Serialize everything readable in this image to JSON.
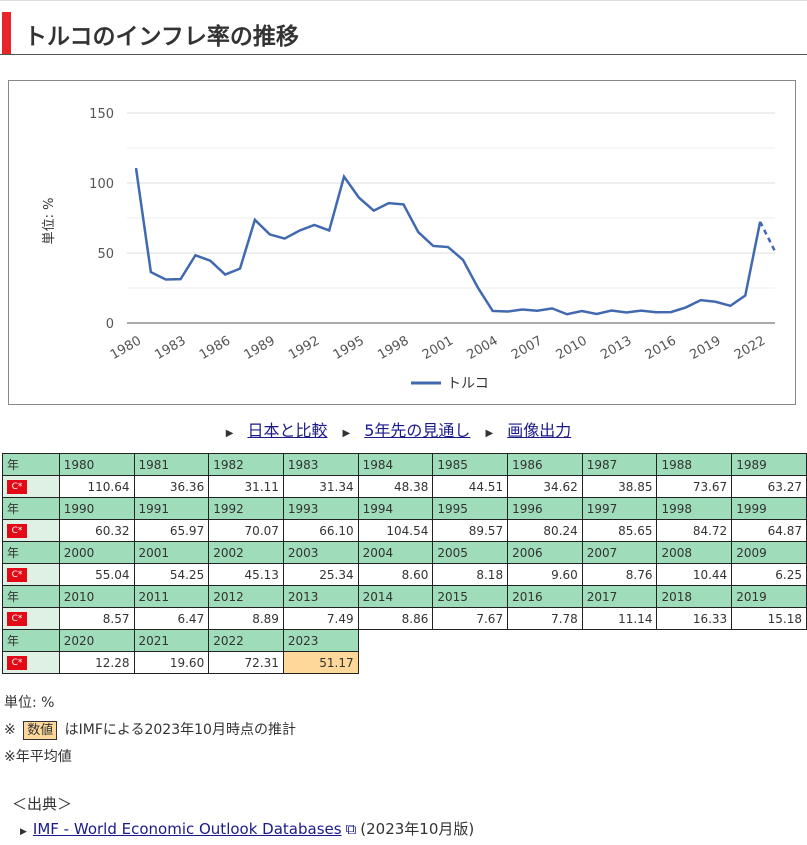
{
  "title": "トルコのインフレ率の推移",
  "chart_data": {
    "type": "line",
    "ylabel": "単位: %",
    "ylim": [
      0,
      150
    ],
    "yticks": [
      "0",
      "50",
      "100",
      "150"
    ],
    "xticks": [
      "1980",
      "1983",
      "1986",
      "1989",
      "1992",
      "1995",
      "1998",
      "2001",
      "2004",
      "2007",
      "2010",
      "2013",
      "2016",
      "2019",
      "2022"
    ],
    "legend": "トルコ",
    "legend_position": "bottom",
    "grid": true,
    "color": "#4169b0",
    "x": [
      1980,
      1981,
      1982,
      1983,
      1984,
      1985,
      1986,
      1987,
      1988,
      1989,
      1990,
      1991,
      1992,
      1993,
      1994,
      1995,
      1996,
      1997,
      1998,
      1999,
      2000,
      2001,
      2002,
      2003,
      2004,
      2005,
      2006,
      2007,
      2008,
      2009,
      2010,
      2011,
      2012,
      2013,
      2014,
      2015,
      2016,
      2017,
      2018,
      2019,
      2020,
      2021,
      2022,
      2023
    ],
    "values": [
      110.64,
      36.36,
      31.11,
      31.34,
      48.38,
      44.51,
      34.62,
      38.85,
      73.67,
      63.27,
      60.32,
      65.97,
      70.07,
      66.1,
      104.54,
      89.57,
      80.24,
      85.65,
      84.72,
      64.87,
      55.04,
      54.25,
      45.13,
      25.34,
      8.6,
      8.18,
      9.6,
      8.76,
      10.44,
      6.25,
      8.57,
      6.47,
      8.89,
      7.49,
      8.86,
      7.67,
      7.78,
      11.14,
      16.33,
      15.18,
      12.28,
      19.6,
      72.31,
      51.17
    ],
    "estimate_from": 2023
  },
  "links": [
    "日本と比較",
    "5年先の見通し",
    "画像出力"
  ],
  "table": {
    "year_label": "年",
    "flag_text": "C*",
    "values": [
      "110.64",
      "36.36",
      "31.11",
      "31.34",
      "48.38",
      "44.51",
      "34.62",
      "38.85",
      "73.67",
      "63.27",
      "60.32",
      "65.97",
      "70.07",
      "66.10",
      "104.54",
      "89.57",
      "80.24",
      "85.65",
      "84.72",
      "64.87",
      "55.04",
      "54.25",
      "45.13",
      "25.34",
      "8.60",
      "8.18",
      "9.60",
      "8.76",
      "10.44",
      "6.25",
      "8.57",
      "6.47",
      "8.89",
      "7.49",
      "8.86",
      "7.67",
      "7.78",
      "11.14",
      "16.33",
      "15.18",
      "12.28",
      "19.60",
      "72.31",
      "51.17"
    ]
  },
  "notes": {
    "unit": "単位: %",
    "mark": "※",
    "badge": "数値",
    "estimate": "はIMFによる2023年10月時点の推計",
    "annual": "※年平均値"
  },
  "source": {
    "heading": "＜出典＞",
    "link": "IMF - World Economic Outlook Databases",
    "edition": "(2023年10月版)"
  }
}
